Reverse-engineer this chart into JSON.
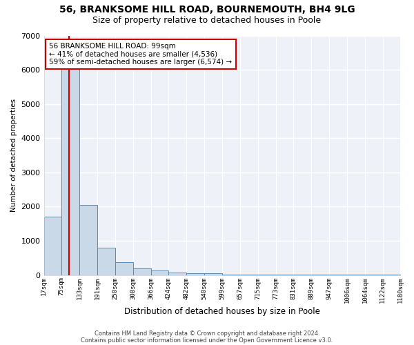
{
  "title1": "56, BRANKSOME HILL ROAD, BOURNEMOUTH, BH4 9LG",
  "title2": "Size of property relative to detached houses in Poole",
  "xlabel": "Distribution of detached houses by size in Poole",
  "ylabel": "Number of detached properties",
  "annotation_line1": "56 BRANKSOME HILL ROAD: 99sqm",
  "annotation_line2": "← 41% of detached houses are smaller (4,536)",
  "annotation_line3": "59% of semi-detached houses are larger (6,574) →",
  "footnote1": "Contains HM Land Registry data © Crown copyright and database right 2024.",
  "footnote2": "Contains public sector information licensed under the Open Government Licence v3.0.",
  "bar_edges": [
    17,
    75,
    133,
    191,
    250,
    308,
    366,
    424,
    482,
    540,
    599,
    657,
    715,
    773,
    831,
    889,
    947,
    1006,
    1064,
    1122,
    1180
  ],
  "bar_heights": [
    1700,
    6050,
    2050,
    800,
    370,
    200,
    130,
    80,
    60,
    50,
    20,
    15,
    10,
    8,
    5,
    4,
    3,
    2,
    2,
    1,
    1
  ],
  "bar_color": "#c9d9e8",
  "bar_edge_color": "#5a8ab0",
  "vline_color": "#cc0000",
  "vline_x": 99,
  "ylim": [
    0,
    7000
  ],
  "yticks": [
    0,
    1000,
    2000,
    3000,
    4000,
    5000,
    6000,
    7000
  ],
  "bg_color": "#eef2f8",
  "grid_color": "#ffffff",
  "annotation_box_color": "#cc0000",
  "title1_fontsize": 10,
  "title2_fontsize": 9
}
